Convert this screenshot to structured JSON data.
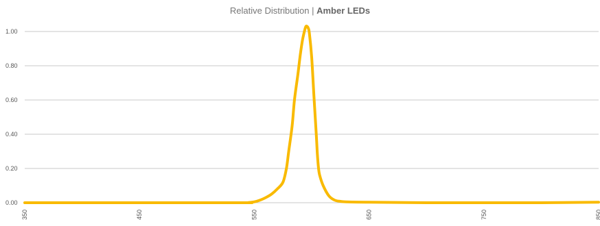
{
  "chart_data": {
    "type": "line",
    "title_prefix": "Relative Distribution | ",
    "title_bold": "Amber LEDs",
    "xlabel": "",
    "ylabel": "",
    "xlim": [
      350,
      850
    ],
    "ylim": [
      0,
      1.0
    ],
    "x_ticks": [
      "350",
      "450",
      "550",
      "650",
      "750",
      "850"
    ],
    "y_ticks": [
      "0.00",
      "0.20",
      "0.40",
      "0.60",
      "0.80",
      "1.00"
    ],
    "grid": true,
    "series": [
      {
        "color": "#F9BA00",
        "x": [
          350,
          450,
          540,
          545,
          550,
          555,
          560,
          565,
          570,
          575,
          578,
          580,
          583,
          585,
          588,
          590,
          592,
          594,
          595,
          596,
          597,
          598,
          600,
          602,
          604,
          605,
          606,
          607,
          610,
          615,
          620,
          625,
          630,
          650,
          700,
          750,
          800,
          850
        ],
        "y": [
          0,
          0,
          0,
          0.001,
          0.005,
          0.015,
          0.03,
          0.05,
          0.08,
          0.12,
          0.2,
          0.3,
          0.45,
          0.6,
          0.75,
          0.86,
          0.95,
          1.01,
          1.03,
          1.03,
          1.02,
          0.99,
          0.85,
          0.62,
          0.4,
          0.28,
          0.2,
          0.16,
          0.1,
          0.04,
          0.015,
          0.008,
          0.005,
          0.003,
          0.0,
          0.0,
          0.0,
          0.003
        ]
      }
    ]
  }
}
